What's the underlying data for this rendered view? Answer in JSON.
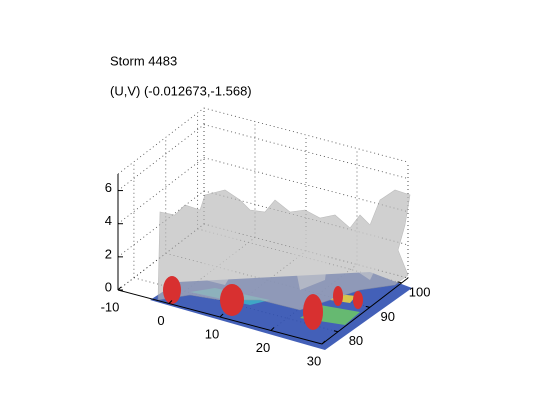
{
  "chart_data": {
    "type": "isosurface3d",
    "title": "Storm 4483",
    "subtitle": "(U,V) (-0.012673,-1.568)",
    "xlim": [
      -10,
      30
    ],
    "xticks": [
      -10,
      0,
      10,
      20,
      30
    ],
    "ylim": [
      75,
      102
    ],
    "yticks": [
      80,
      90,
      100
    ],
    "zlim": [
      0,
      7
    ],
    "zticks": [
      0,
      2,
      4,
      6
    ],
    "grid": true
  }
}
